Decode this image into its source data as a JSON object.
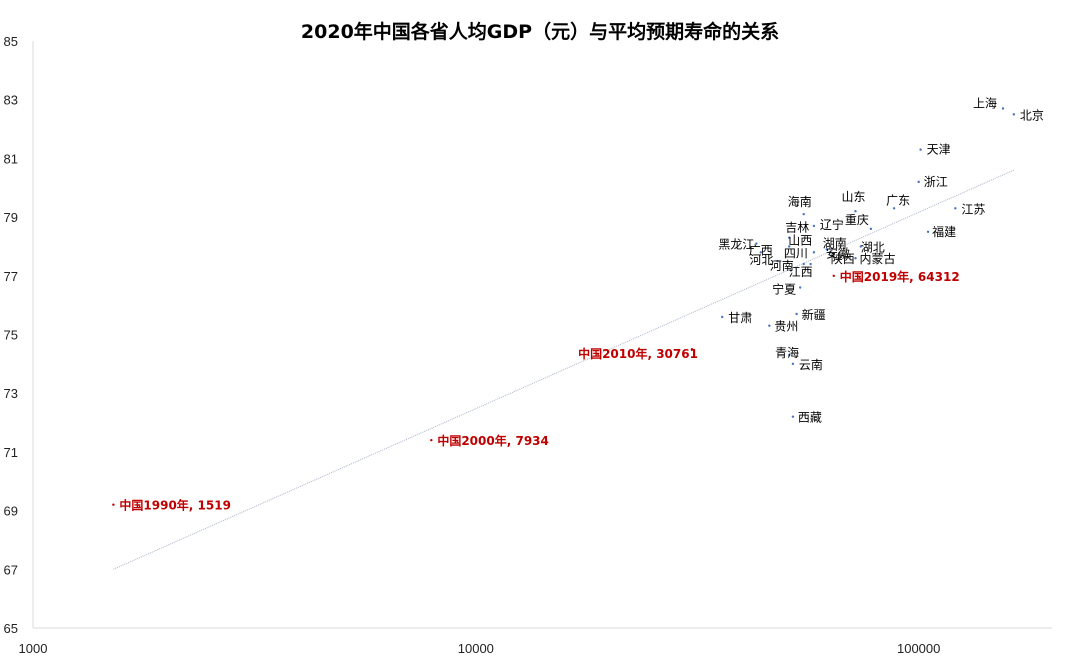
{
  "chart_data": {
    "type": "scatter",
    "title": "2020年中国各省人均GDP（元）与平均预期寿命的关系",
    "xlabel": "",
    "ylabel": "",
    "xscale": "log",
    "xlim": [
      1000,
      200000
    ],
    "ylim": [
      65,
      85
    ],
    "x_ticks": [
      1000,
      10000,
      100000
    ],
    "x_tick_labels": [
      "1000",
      "10000",
      "100000"
    ],
    "y_ticks": [
      65,
      67,
      69,
      71,
      73,
      75,
      77,
      79,
      81,
      83,
      85
    ],
    "grid": false,
    "point_color": "#4472c4",
    "highlight_color": "#c00000",
    "trendline": {
      "type": "logarithmic",
      "x": [
        1519,
        164000
      ],
      "y": [
        67.0,
        80.6
      ],
      "color": "#aab4c8"
    },
    "points": [
      {
        "label": "北京",
        "x": 164000,
        "y": 82.5
      },
      {
        "label": "上海",
        "x": 155000,
        "y": 82.7
      },
      {
        "label": "天津",
        "x": 101000,
        "y": 81.3
      },
      {
        "label": "浙江",
        "x": 100000,
        "y": 80.2
      },
      {
        "label": "江苏",
        "x": 121000,
        "y": 79.3
      },
      {
        "label": "福建",
        "x": 105000,
        "y": 78.5
      },
      {
        "label": "广东",
        "x": 88000,
        "y": 79.3
      },
      {
        "label": "山东",
        "x": 72000,
        "y": 79.2
      },
      {
        "label": "重庆",
        "x": 78000,
        "y": 78.6
      },
      {
        "label": "内蒙古",
        "x": 72000,
        "y": 77.6
      },
      {
        "label": "湖北",
        "x": 74000,
        "y": 78.0
      },
      {
        "label": "海南",
        "x": 55000,
        "y": 79.1
      },
      {
        "label": "辽宁",
        "x": 58000,
        "y": 78.7
      },
      {
        "label": "湖南",
        "x": 62000,
        "y": 77.9
      },
      {
        "label": "安徽",
        "x": 63000,
        "y": 77.8
      },
      {
        "label": "陕西",
        "x": 66000,
        "y": 77.6
      },
      {
        "label": "吉林",
        "x": 51000,
        "y": 78.3
      },
      {
        "label": "山西",
        "x": 51000,
        "y": 78.0
      },
      {
        "label": "四川",
        "x": 58000,
        "y": 77.8
      },
      {
        "label": "黑龙江",
        "x": 43000,
        "y": 78.1
      },
      {
        "label": "广西",
        "x": 44000,
        "y": 77.8
      },
      {
        "label": "河北",
        "x": 48000,
        "y": 77.5
      },
      {
        "label": "江西",
        "x": 57000,
        "y": 77.4
      },
      {
        "label": "河南",
        "x": 55000,
        "y": 77.4
      },
      {
        "label": "宁夏",
        "x": 54000,
        "y": 76.6
      },
      {
        "label": "新疆",
        "x": 53000,
        "y": 75.7
      },
      {
        "label": "贵州",
        "x": 46000,
        "y": 75.3
      },
      {
        "label": "甘肃",
        "x": 36000,
        "y": 75.6
      },
      {
        "label": "青海",
        "x": 51000,
        "y": 74.3
      },
      {
        "label": "云南",
        "x": 52000,
        "y": 74.0
      },
      {
        "label": "西藏",
        "x": 52000,
        "y": 72.2
      },
      {
        "label": "中国2019年, 64312",
        "x": 64312,
        "y": 77.0,
        "highlight": true
      },
      {
        "label": "中国2010年, 30761",
        "x": 30761,
        "y": 74.5,
        "highlight": true
      },
      {
        "label": "中国2000年, 7934",
        "x": 7934,
        "y": 71.4,
        "highlight": true
      },
      {
        "label": "中国1990年, 1519",
        "x": 1519,
        "y": 69.2,
        "highlight": true
      }
    ]
  }
}
